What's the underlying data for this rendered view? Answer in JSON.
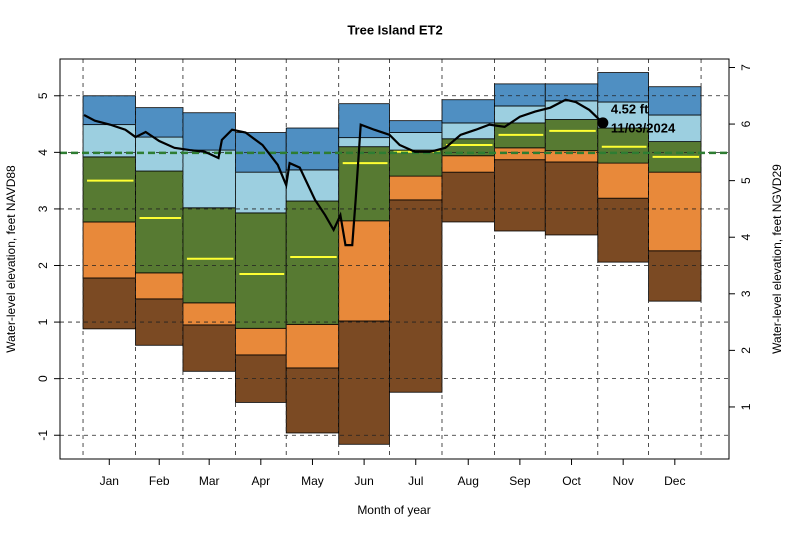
{
  "chart_data": {
    "type": "band",
    "title": "Tree Island ET2",
    "xlabel": "Month of year",
    "ylabel": "Water-level elevation, feet NAVD88",
    "y2label": "Water-level elevation, feet NGVD29",
    "categories": [
      "Jan",
      "Feb",
      "Mar",
      "Apr",
      "May",
      "Jun",
      "Jul",
      "Aug",
      "Sep",
      "Oct",
      "Nov",
      "Dec"
    ],
    "month_bounds": [
      0,
      31,
      59,
      90,
      120,
      151,
      181,
      212,
      243,
      273,
      304,
      334,
      365
    ],
    "xlim": [
      -13.6,
      381.5
    ],
    "ylim": [
      -1.42,
      5.65
    ],
    "yticks": [
      -1,
      0,
      1,
      2,
      3,
      4,
      5
    ],
    "y2lim": [
      0.08,
      7.15
    ],
    "y2ticks": [
      1,
      2,
      3,
      4,
      5,
      6,
      7
    ],
    "grid": true,
    "levels": [
      [
        0.88,
        0.59,
        0.13,
        -0.42,
        -0.96,
        -1.16,
        -0.24,
        2.77,
        2.61,
        2.54,
        2.06,
        1.37
      ],
      [
        1.78,
        1.41,
        0.95,
        0.42,
        0.19,
        1.02,
        3.16,
        3.65,
        3.87,
        3.83,
        3.19,
        2.26
      ],
      [
        2.77,
        1.87,
        1.34,
        0.89,
        0.96,
        2.79,
        3.58,
        3.94,
        4.08,
        4.03,
        3.81,
        3.65
      ],
      [
        3.92,
        3.67,
        3.02,
        2.93,
        3.14,
        4.1,
        4.04,
        4.24,
        4.52,
        4.58,
        4.43,
        4.19
      ],
      [
        4.49,
        4.27,
        4.04,
        3.65,
        3.69,
        4.26,
        4.35,
        4.52,
        4.82,
        4.91,
        4.89,
        4.66
      ],
      [
        5.0,
        4.79,
        4.7,
        4.35,
        4.43,
        4.86,
        4.56,
        4.93,
        5.21,
        5.21,
        5.41,
        5.16
      ]
    ],
    "band_colors": [
      "#7b4a23",
      "#e8893a",
      "#577a32",
      "#9ccfe0",
      "#4f8fc2"
    ],
    "median": {
      "color": "#ffff33",
      "values": [
        3.5,
        2.84,
        2.12,
        1.85,
        2.15,
        3.81,
        4.01,
        4.13,
        4.31,
        4.38,
        4.1,
        3.92
      ]
    },
    "reference": {
      "color": "#2e7d32",
      "value": 3.99
    },
    "current": {
      "color": "#000000",
      "x": [
        0.6,
        7,
        16,
        25,
        31,
        37,
        45,
        54,
        63,
        72,
        80,
        82,
        88,
        96,
        106,
        115,
        120,
        122,
        128,
        137,
        143,
        148,
        152,
        155,
        159,
        161,
        164,
        172,
        181,
        187,
        196,
        205,
        214,
        223,
        232,
        240,
        249,
        258,
        267,
        276,
        285,
        291,
        299,
        307
      ],
      "values": [
        4.66,
        4.56,
        4.49,
        4.4,
        4.27,
        4.36,
        4.2,
        4.08,
        4.04,
        4.01,
        3.9,
        4.22,
        4.4,
        4.35,
        4.13,
        3.78,
        3.42,
        3.81,
        3.73,
        3.16,
        2.89,
        2.63,
        2.89,
        2.36,
        2.36,
        3.16,
        4.49,
        4.4,
        4.31,
        4.13,
        4.01,
        4.01,
        4.08,
        4.31,
        4.4,
        4.49,
        4.45,
        4.63,
        4.72,
        4.79,
        4.93,
        4.89,
        4.75,
        4.52
      ]
    },
    "annotation": {
      "x": 307,
      "value": 4.52,
      "value_label": "4.52 ft",
      "date_label": "11/03/2024"
    }
  }
}
